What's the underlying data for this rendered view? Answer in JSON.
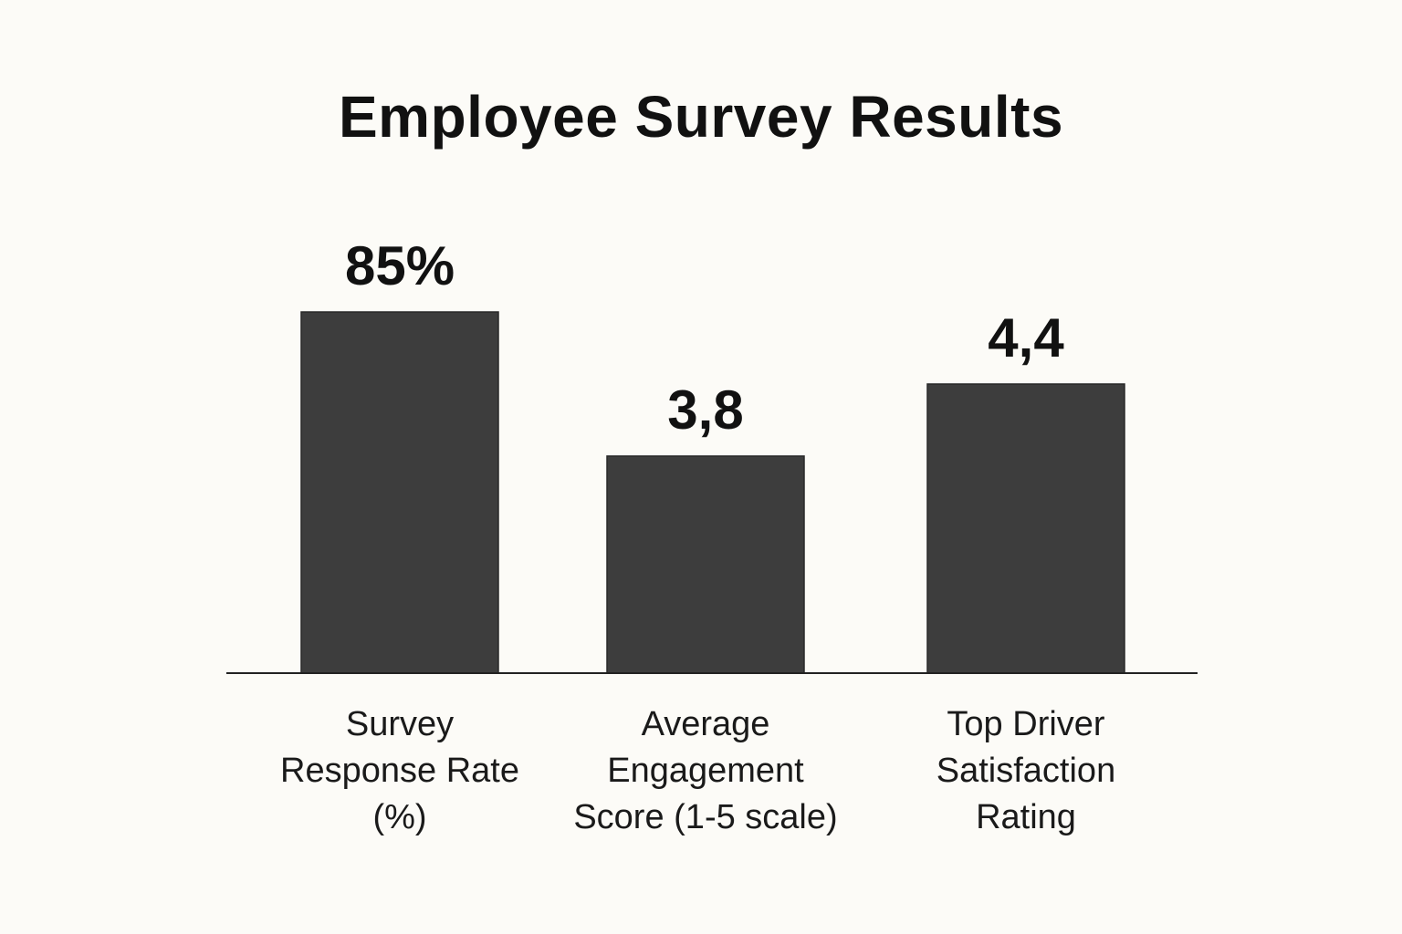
{
  "chart_data": {
    "type": "bar",
    "title": "Employee Survey Results",
    "categories": [
      [
        "Survey",
        "Response Rate",
        "(%)"
      ],
      [
        "Average",
        "Engagement",
        "Score (1-5 scale)"
      ],
      [
        "Top Driver",
        "Satisfaction",
        "Rating"
      ]
    ],
    "values": [
      85,
      3.8,
      4.4
    ],
    "value_labels": [
      "85%",
      "3,8",
      "4,4"
    ],
    "xlabel": "",
    "ylabel": "",
    "grid": false,
    "legend": "none",
    "colors": {
      "bar": "#3d3d3d",
      "axis": "#222222",
      "background": "#fcfbf7",
      "text": "#111111"
    }
  }
}
